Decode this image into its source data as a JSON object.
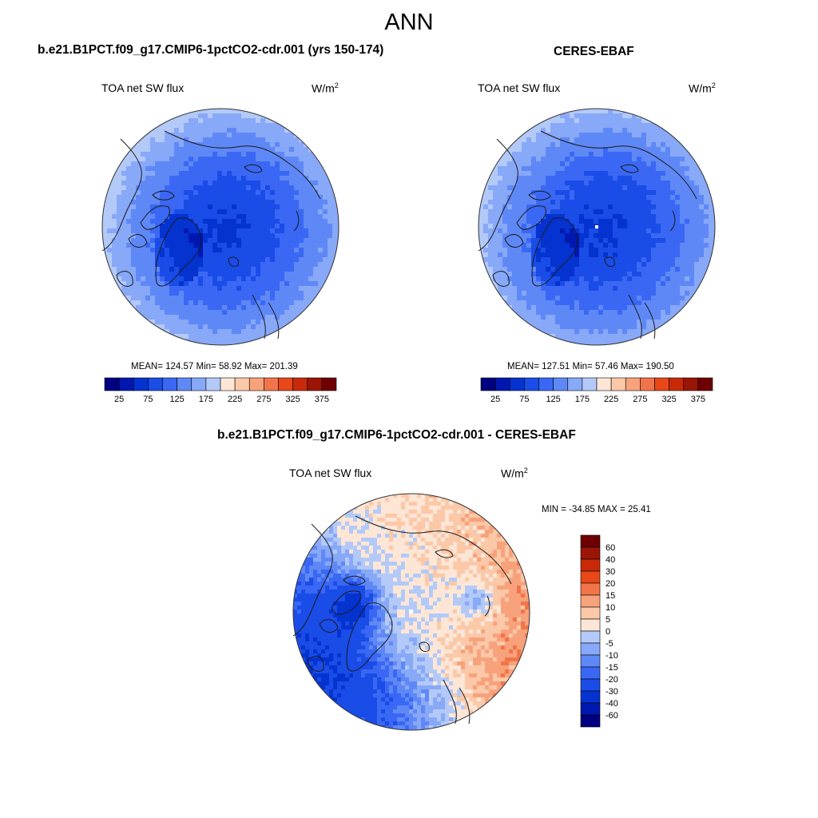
{
  "page": {
    "main_title": "ANN"
  },
  "colors": {
    "abs_scale": [
      "#000080",
      "#0018b0",
      "#0533d0",
      "#1a4ce8",
      "#3a68f4",
      "#5f88f7",
      "#88a8f8",
      "#b3caf9",
      "#dde8fb",
      "#fde6d6",
      "#fbc8a8",
      "#f8a27c",
      "#f27449",
      "#e84818",
      "#c82a08",
      "#9a1506",
      "#6e0004"
    ],
    "diff_scale": [
      "#000080",
      "#0018b0",
      "#0533d0",
      "#1a4ce8",
      "#3a68f4",
      "#5f88f7",
      "#88a8f8",
      "#b3caf9",
      "#dde8fb",
      "#fde6d6",
      "#fbc8a8",
      "#f8a27c",
      "#f27449",
      "#e84818",
      "#c82a08",
      "#9a1506",
      "#6e0004"
    ],
    "land_outline": "#1a1a1a",
    "circle_border": "#333333"
  },
  "chart_data": [
    {
      "type": "heatmap",
      "projection": "north-polar-stereographic",
      "title": "b.e21.B1PCT.f09_g17.CMIP6-1pctCO2-cdr.001 (yrs 150-174)",
      "variable": "TOA net SW flux",
      "units_base": "W/m",
      "units_exp": "2",
      "stats_text": "MEAN= 124.57  Min=  58.92  Max= 201.39",
      "mean": 124.57,
      "min": 58.92,
      "max": 201.39,
      "colorbar": {
        "orientation": "horizontal",
        "levels": [
          25,
          50,
          75,
          100,
          125,
          150,
          175,
          200,
          225,
          250,
          275,
          300,
          325,
          350,
          375
        ],
        "tick_labels": [
          "25",
          "75",
          "125",
          "175",
          "225",
          "275",
          "325",
          "375"
        ]
      },
      "field": {
        "pole": 70,
        "rim": 175,
        "marginal": 160
      }
    },
    {
      "type": "heatmap",
      "projection": "north-polar-stereographic",
      "title": "CERES-EBAF",
      "variable": "TOA net SW flux",
      "units_base": "W/m",
      "units_exp": "2",
      "stats_text": "MEAN= 127.51  Min=  57.46  Max= 190.50",
      "mean": 127.51,
      "min": 57.46,
      "max": 190.5,
      "colorbar": {
        "orientation": "horizontal",
        "levels": [
          25,
          50,
          75,
          100,
          125,
          150,
          175,
          200,
          225,
          250,
          275,
          300,
          325,
          350,
          375
        ],
        "tick_labels": [
          "25",
          "75",
          "125",
          "175",
          "225",
          "275",
          "325",
          "375"
        ]
      },
      "field": {
        "pole": 70,
        "rim": 170,
        "marginal": 165
      }
    },
    {
      "type": "heatmap",
      "projection": "north-polar-stereographic",
      "title": "b.e21.B1PCT.f09_g17.CMIP6-1pctCO2-cdr.001 - CERES-EBAF",
      "variable": "TOA net SW flux",
      "units_base": "W/m",
      "units_exp": "2",
      "stats_text": "MIN = -34.85 MAX =  25.41",
      "min": -34.85,
      "max": 25.41,
      "colorbar": {
        "orientation": "vertical",
        "levels": [
          -60,
          -40,
          -30,
          -20,
          -15,
          -10,
          -5,
          0,
          5,
          10,
          15,
          20,
          30,
          40,
          60
        ],
        "tick_labels": [
          "60",
          "40",
          "30",
          "20",
          "15",
          "10",
          "5",
          "0",
          "-5",
          "-10",
          "-15",
          "-20",
          "-30",
          "-40",
          "-60"
        ]
      }
    }
  ]
}
